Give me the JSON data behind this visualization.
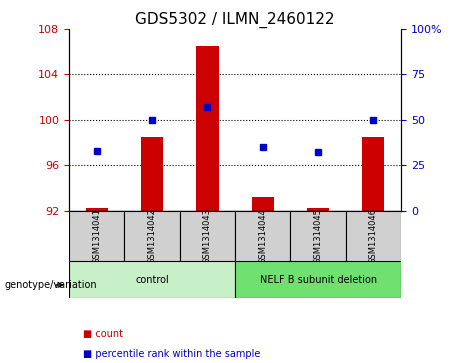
{
  "title": "GDS5302 / ILMN_2460122",
  "samples": [
    "GSM1314041",
    "GSM1314042",
    "GSM1314043",
    "GSM1314044",
    "GSM1314045",
    "GSM1314046"
  ],
  "counts": [
    92.2,
    98.5,
    106.5,
    93.2,
    92.2,
    98.5
  ],
  "percentile_ranks": [
    33,
    50,
    57,
    35,
    32,
    50
  ],
  "ylim_left": [
    92,
    108
  ],
  "ylim_right": [
    0,
    100
  ],
  "yticks_left": [
    92,
    96,
    100,
    104,
    108
  ],
  "yticks_right": [
    0,
    25,
    50,
    75,
    100
  ],
  "bar_color": "#cc0000",
  "dot_color": "#0000cc",
  "bar_bottom": 92,
  "groups": [
    {
      "label": "control",
      "indices": [
        0,
        1,
        2
      ],
      "color": "#c8f0c8"
    },
    {
      "label": "NELF B subunit deletion",
      "indices": [
        3,
        4,
        5
      ],
      "color": "#70e070"
    }
  ],
  "group_label_prefix": "genotype/variation",
  "legend_items": [
    {
      "label": "count",
      "color": "#cc0000"
    },
    {
      "label": "percentile rank within the sample",
      "color": "#0000cc"
    }
  ],
  "grid_color": "black",
  "bg_color": "#ffffff",
  "plot_bg": "#ffffff",
  "tick_label_color_left": "#cc0000",
  "tick_label_color_right": "#0000cc",
  "right_axis_label_suffix": "%",
  "bar_width": 0.4
}
